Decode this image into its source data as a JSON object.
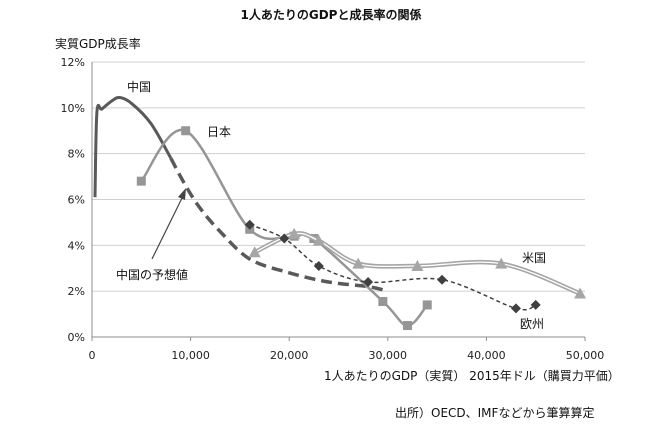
{
  "chart_data": {
    "type": "line",
    "title": "1人あたりのGDPと成長率の関係",
    "ylabel": "実質GDP成長率",
    "xlabel": "1人あたりのGDP（実質） 2015年ドル（購買力平価）",
    "source": "出所）OECD、IMFなどから筆算算定",
    "xlim": [
      0,
      50000
    ],
    "ylim": [
      0,
      12
    ],
    "x_ticks": [
      0,
      10000,
      20000,
      30000,
      40000,
      50000
    ],
    "x_tick_labels": [
      "0",
      "10,000",
      "20,000",
      "30,000",
      "40,000",
      "50,000"
    ],
    "y_ticks": [
      0,
      2,
      4,
      6,
      8,
      10,
      12
    ],
    "y_tick_labels": [
      "0%",
      "2%",
      "4%",
      "6%",
      "8%",
      "10%",
      "12%"
    ],
    "grid": "horizontal",
    "series": [
      {
        "name": "中国",
        "color": "#595959",
        "style": "solid",
        "marker": "none",
        "points": [
          [
            300,
            6.1
          ],
          [
            500,
            9.8
          ],
          [
            1000,
            9.95
          ],
          [
            2000,
            10.3
          ],
          [
            2800,
            10.45
          ],
          [
            4000,
            10.2
          ],
          [
            6000,
            9.3
          ],
          [
            8000,
            7.8
          ]
        ]
      },
      {
        "name": "中国の予想値",
        "color": "#595959",
        "style": "dashed",
        "marker": "none",
        "points": [
          [
            8000,
            7.8
          ],
          [
            9500,
            6.6
          ],
          [
            11000,
            5.6
          ],
          [
            13000,
            4.6
          ],
          [
            16000,
            3.4
          ],
          [
            20000,
            2.8
          ],
          [
            24000,
            2.4
          ],
          [
            28000,
            2.2
          ],
          [
            30000,
            2.0
          ]
        ]
      },
      {
        "name": "日本",
        "color": "#969696",
        "style": "solid",
        "marker": "square",
        "points": [
          [
            5000,
            6.8
          ],
          [
            9500,
            9.0
          ],
          [
            16000,
            4.7
          ],
          [
            20500,
            4.4
          ],
          [
            22500,
            4.3
          ],
          [
            29500,
            1.55
          ],
          [
            32000,
            0.5
          ],
          [
            34000,
            1.4
          ]
        ]
      },
      {
        "name": "米国",
        "color": "#a6a6a6",
        "style": "double",
        "marker": "triangle",
        "points": [
          [
            16500,
            3.7
          ],
          [
            20500,
            4.5
          ],
          [
            23000,
            4.2
          ],
          [
            27000,
            3.2
          ],
          [
            33000,
            3.1
          ],
          [
            41500,
            3.2
          ],
          [
            49500,
            1.9
          ]
        ]
      },
      {
        "name": "欧州",
        "color": "#404040",
        "style": "dotted",
        "marker": "diamond",
        "points": [
          [
            16000,
            4.9
          ],
          [
            19500,
            4.3
          ],
          [
            23000,
            3.1
          ],
          [
            28000,
            2.4
          ],
          [
            35500,
            2.5
          ],
          [
            43000,
            1.25
          ],
          [
            45000,
            1.4
          ]
        ]
      }
    ],
    "annotations": [
      {
        "text": "中国",
        "near": "China line peak"
      },
      {
        "text": "日本",
        "near": "Japan peak"
      },
      {
        "text": "米国",
        "near": "USA end"
      },
      {
        "text": "欧州",
        "near": "Europe end"
      },
      {
        "text": "中国の予想値",
        "near": "arrow to dashed line"
      }
    ]
  }
}
